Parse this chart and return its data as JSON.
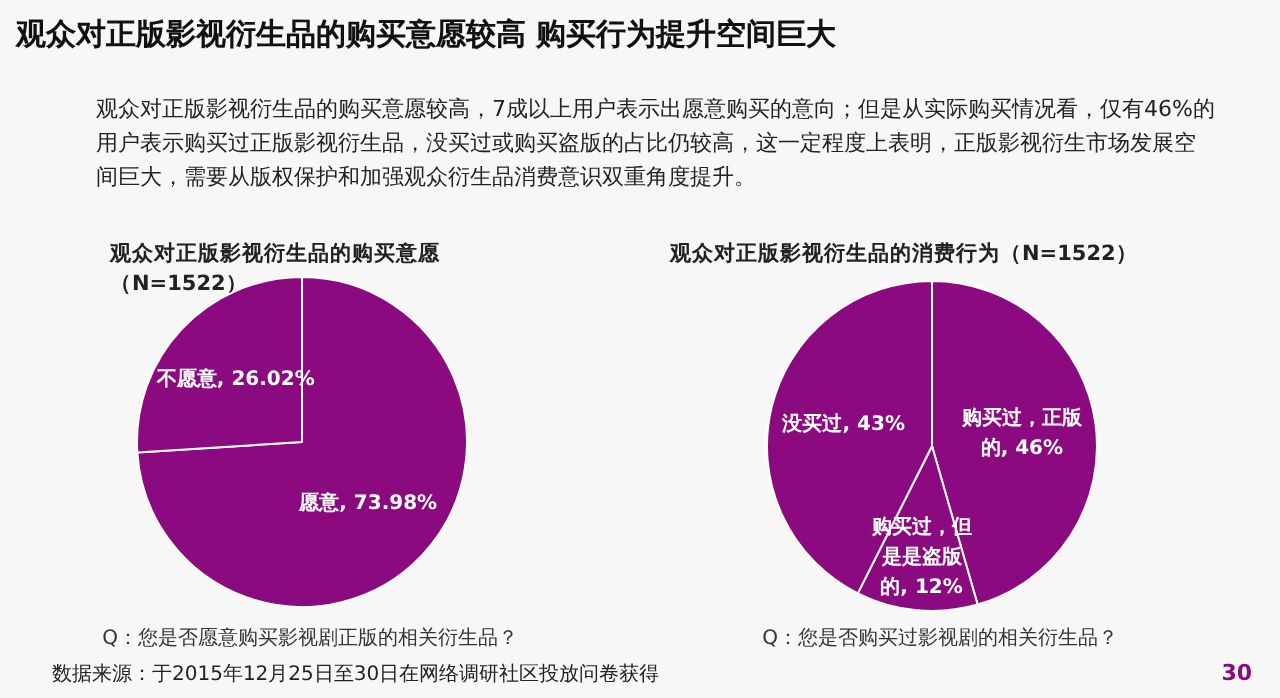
{
  "chart_data": [
    {
      "type": "other",
      "title": "观众对正版影视衍生品的购买意愿较高 购买行为提升空间巨大",
      "annotations": [
        "观众对正版影视衍生品的购买意愿较高，7成以上用户表示出愿意购买的意向；但是从实际购买情况看，仅有46%的用户表示购买过正版影视衍生品，没买过或购买盗版的占比仍较高，这一定程度上表明，正版影视衍生市场发展空间巨大，需要从版权保护和加强观众衍生品消费意识双重角度提升。"
      ]
    },
    {
      "type": "pie",
      "title": "观众对正版影视衍生品的购买意愿（N=1522）",
      "categories": [
        "愿意",
        "不愿意"
      ],
      "values": [
        73.98,
        26.02
      ],
      "value_labels": [
        "73.98%",
        "26.02%"
      ],
      "colors": [
        "#8b0a7f",
        "#8b0a7f"
      ],
      "annotations": [
        "Q：您是否愿意购买影视剧正版的相关衍生品？"
      ]
    },
    {
      "type": "pie",
      "title": "观众对正版影视衍生品的消费行为（N=1522）",
      "categories": [
        "购买过，正版的",
        "购买过，但是是盗版的",
        "没买过"
      ],
      "values": [
        46,
        12,
        43
      ],
      "value_labels": [
        "46%",
        "12%",
        "43%"
      ],
      "colors": [
        "#8b0a7f",
        "#8b0a7f",
        "#8b0a7f"
      ],
      "annotations": [
        "Q：您是否购买过影视剧的相关衍生品？"
      ]
    },
    {
      "type": "other",
      "annotations": [
        "数据来源：于2015年12月25日至30日在网络调研社区投放问卷获得",
        "30"
      ]
    }
  ]
}
